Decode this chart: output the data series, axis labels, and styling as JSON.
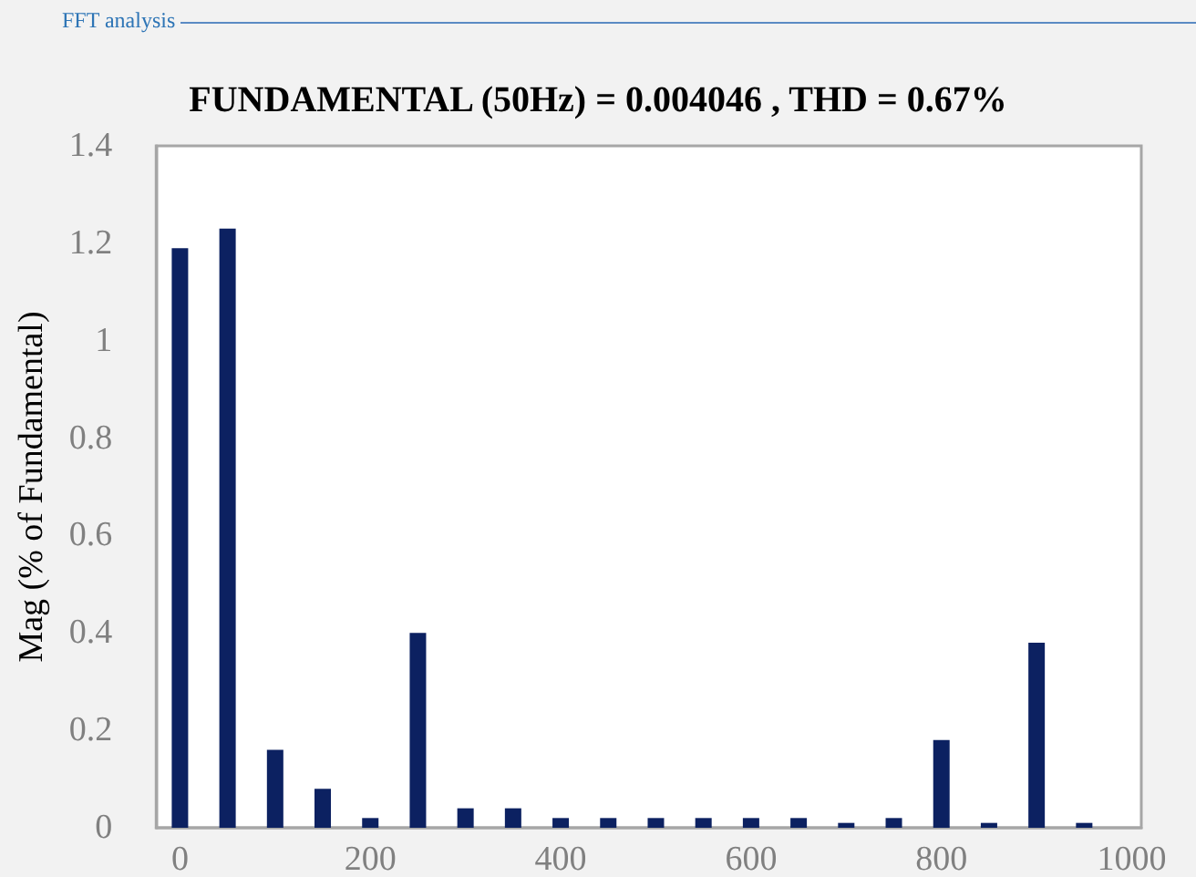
{
  "chart_data": {
    "type": "bar",
    "title": "FUNDAMENTAL (50Hz) = 0.004046 , THD = 0.67%",
    "ylabel": "Mag (% of Fundamental)",
    "annotations": [
      "FFT analysis"
    ],
    "x": [
      0,
      50,
      100,
      150,
      200,
      250,
      300,
      350,
      400,
      450,
      500,
      550,
      600,
      650,
      700,
      750,
      800,
      850,
      900,
      950
    ],
    "values": [
      1.19,
      1.23,
      0.16,
      0.08,
      0.02,
      0.4,
      0.04,
      0.04,
      0.02,
      0.02,
      0.02,
      0.02,
      0.02,
      0.02,
      0.01,
      0.02,
      0.18,
      0.01,
      0.38,
      0.01
    ],
    "color": "#0c2161",
    "xlim": [
      -25,
      1010
    ],
    "xticks": [
      0,
      200,
      400,
      600,
      800,
      1000
    ],
    "ylim": [
      0,
      1.4
    ],
    "yticks": [
      0,
      0.2,
      0.4,
      0.6,
      0.8,
      1,
      1.2,
      1.4
    ],
    "grid": false
  }
}
